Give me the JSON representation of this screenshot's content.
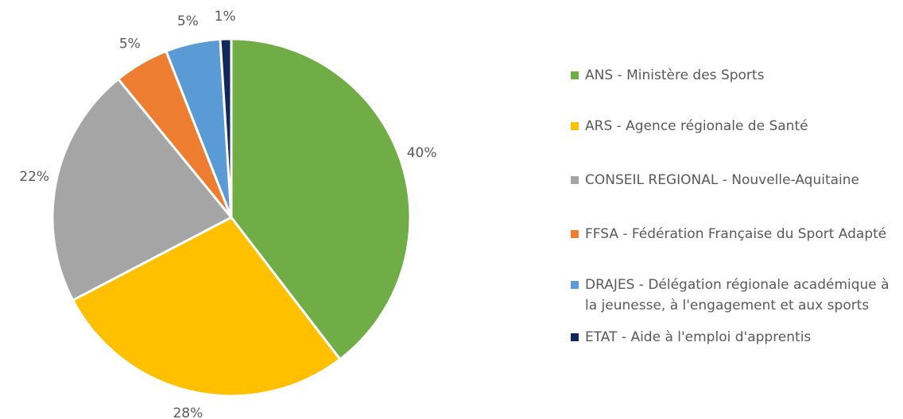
{
  "chart_data": {
    "type": "pie",
    "categories": [
      "ANS - Ministère des Sports",
      "ARS - Agence régionale de Santé",
      "CONSEIL REGIONAL - Nouvelle-Aquitaine",
      "FFSA - Fédération Française du Sport Adapté",
      "DRAJES - Délégation régionale académique à la jeunesse, à l'engagement et aux sports",
      "ETAT - Aide à l'emploi d'apprentis"
    ],
    "values": [
      40,
      28,
      22,
      5,
      5,
      1
    ],
    "value_labels": [
      "40%",
      "28%",
      "22%",
      "5%",
      "5%",
      "1%"
    ],
    "colors": [
      "#70ad47",
      "#ffc000",
      "#a5a5a5",
      "#ed7d31",
      "#5b9bd5",
      "#10285a"
    ],
    "legend": "right"
  }
}
